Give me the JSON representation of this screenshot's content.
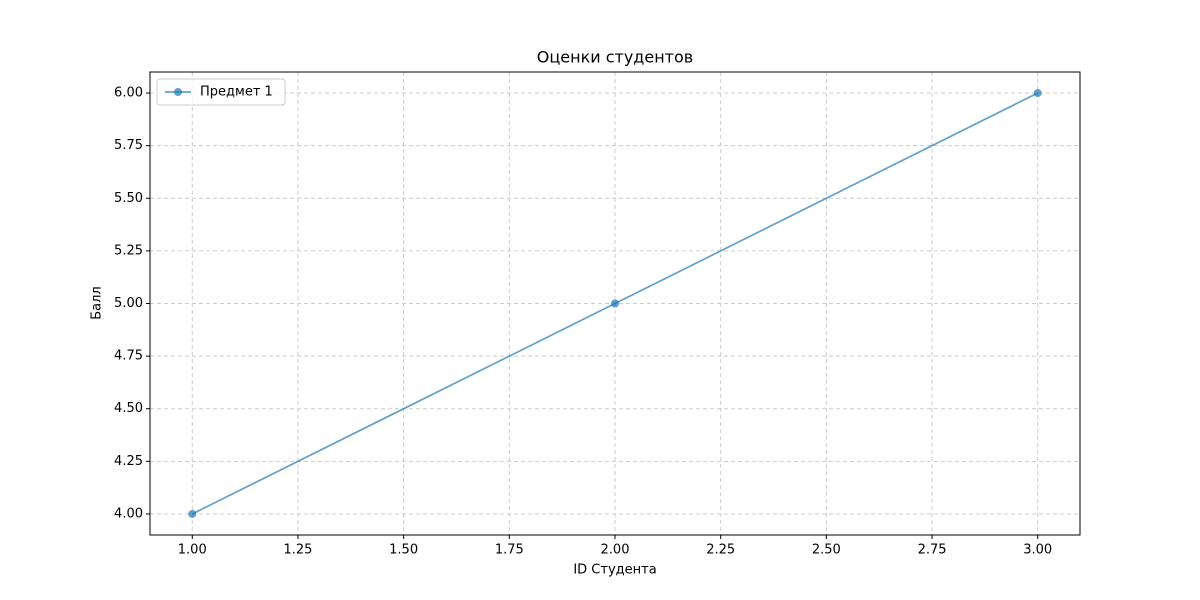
{
  "chart_data": {
    "type": "line",
    "title": "Оценки студентов",
    "xlabel": "ID Студента",
    "ylabel": "Балл",
    "x": [
      1,
      2,
      3
    ],
    "series": [
      {
        "name": "Предмет 1",
        "color": "#1f77b4",
        "values": [
          4,
          5,
          6
        ]
      }
    ],
    "xlim": [
      0.9,
      3.1
    ],
    "xticks": [
      {
        "value": 1,
        "label": "1.00"
      },
      {
        "value": 1.25,
        "label": "1.25"
      },
      {
        "value": 1.5,
        "label": "1.50"
      },
      {
        "value": 1.75,
        "label": "1.75"
      },
      {
        "value": 2,
        "label": "2.00"
      },
      {
        "value": 2.25,
        "label": "2.25"
      },
      {
        "value": 2.5,
        "label": "2.50"
      },
      {
        "value": 2.75,
        "label": "2.75"
      },
      {
        "value": 3,
        "label": "3.00"
      }
    ],
    "ylim": [
      3.9,
      6.1
    ],
    "yticks": [
      {
        "value": 4,
        "label": "4.00"
      },
      {
        "value": 4.25,
        "label": "4.25"
      },
      {
        "value": 4.5,
        "label": "4.50"
      },
      {
        "value": 4.75,
        "label": "4.75"
      },
      {
        "value": 5,
        "label": "5.00"
      },
      {
        "value": 5.25,
        "label": "5.25"
      },
      {
        "value": 5.5,
        "label": "5.50"
      },
      {
        "value": 5.75,
        "label": "5.75"
      },
      {
        "value": 6,
        "label": "6.00"
      }
    ],
    "grid": true,
    "legend": "upper left"
  }
}
